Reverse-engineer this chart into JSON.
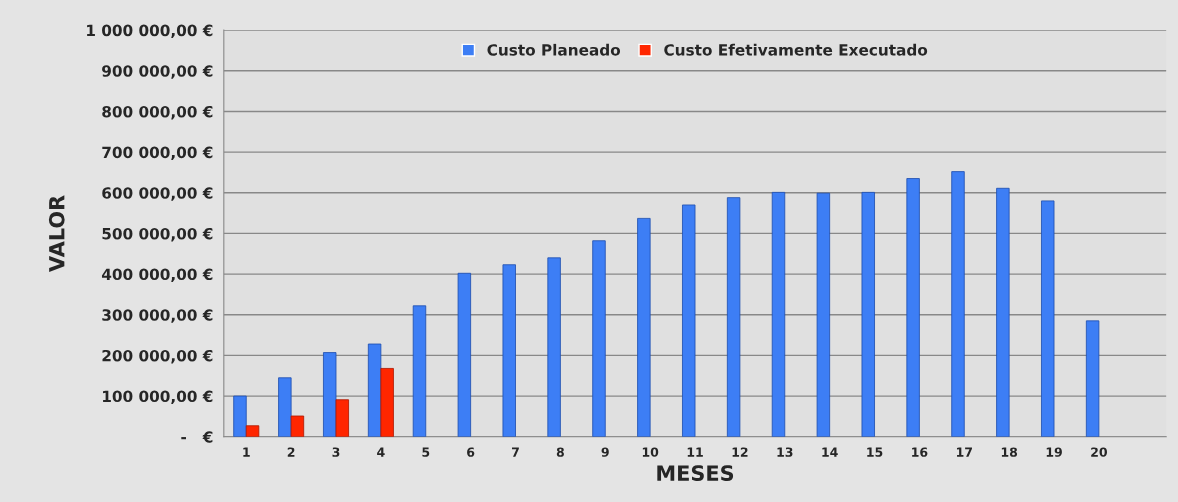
{
  "chart_data": {
    "type": "bar",
    "xlabel": "MESES",
    "ylabel": "VALOR",
    "categories": [
      "1",
      "2",
      "3",
      "4",
      "5",
      "6",
      "7",
      "8",
      "9",
      "10",
      "11",
      "12",
      "13",
      "14",
      "15",
      "16",
      "17",
      "18",
      "19",
      "20",
      null
    ],
    "series": [
      {
        "name": "Custo Planeado",
        "color": "#3d7ef5",
        "values": [
          100000,
          145000,
          207000,
          228000,
          322000,
          402000,
          423000,
          440000,
          482000,
          537000,
          570000,
          588000,
          601000,
          599000,
          601000,
          635000,
          652000,
          611000,
          580000,
          285000,
          null
        ]
      },
      {
        "name": "Custo Efetivamente Executado",
        "color": "#ff2600",
        "values": [
          27000,
          51000,
          91000,
          168000,
          null,
          null,
          null,
          null,
          null,
          null,
          null,
          null,
          null,
          null,
          null,
          null,
          null,
          null,
          null,
          null,
          null
        ]
      }
    ],
    "ylim": [
      0,
      1000000
    ],
    "yticks": [
      {
        "value": 0,
        "label": "-   €"
      },
      {
        "value": 100000,
        "label": "100 000,00 €"
      },
      {
        "value": 200000,
        "label": "200 000,00 €"
      },
      {
        "value": 300000,
        "label": "300 000,00 €"
      },
      {
        "value": 400000,
        "label": "400 000,00 €"
      },
      {
        "value": 500000,
        "label": "500 000,00 €"
      },
      {
        "value": 600000,
        "label": "600 000,00 €"
      },
      {
        "value": 700000,
        "label": "700 000,00 €"
      },
      {
        "value": 800000,
        "label": "800 000,00 €"
      },
      {
        "value": 900000,
        "label": "900 000,00 €"
      },
      {
        "value": 1000000,
        "label": "1 000 000,00 €"
      }
    ],
    "grid": "y",
    "legend": "top"
  }
}
